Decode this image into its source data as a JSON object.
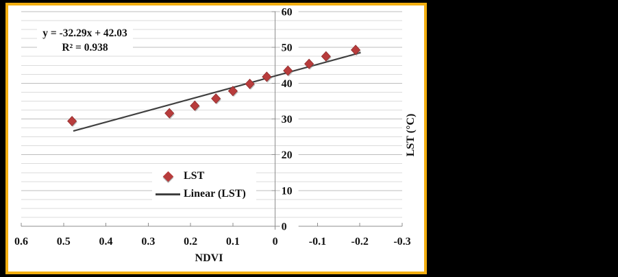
{
  "window": {
    "background": "#000000"
  },
  "chart": {
    "frame_color": "#F2AE10",
    "annotation": {
      "equation": "y = -32.29x + 42.03",
      "r_squared": "R² = 0.938"
    },
    "legend": {
      "items": [
        {
          "label": "LST",
          "marker": "diamond"
        },
        {
          "label": "Linear (LST)",
          "marker": "line"
        }
      ]
    }
  },
  "chart_data": {
    "type": "scatter",
    "title": "",
    "xlabel": "NDVI",
    "ylabel": "LST (°C)",
    "x_axis": {
      "min": 0.6,
      "max": -0.3,
      "reversed": true,
      "tick_values": [
        0.6,
        0.5,
        0.4,
        0.3,
        0.2,
        0.1,
        0,
        -0.1,
        -0.2,
        -0.3
      ],
      "tick_labels": [
        "0.6",
        "0.5",
        "0.4",
        "0.3",
        "0.2",
        "0.1",
        "0",
        "-0.1",
        "-0.2",
        "-0.3"
      ]
    },
    "y_axis": {
      "min": 0,
      "max": 60,
      "major_step": 10,
      "minor_step": 2.5,
      "tick_values": [
        0,
        10,
        20,
        30,
        40,
        50,
        60
      ],
      "tick_labels": [
        "0",
        "10",
        "20",
        "30",
        "40",
        "50",
        "60"
      ]
    },
    "grid": {
      "minor": true,
      "major": true
    },
    "legend_position": "inside-bottom-center",
    "series": [
      {
        "name": "LST",
        "marker": "diamond",
        "points": [
          {
            "x": 0.48,
            "y": 29.4
          },
          {
            "x": 0.25,
            "y": 31.6
          },
          {
            "x": 0.19,
            "y": 33.7
          },
          {
            "x": 0.14,
            "y": 35.7
          },
          {
            "x": 0.1,
            "y": 37.8
          },
          {
            "x": 0.06,
            "y": 39.8
          },
          {
            "x": 0.02,
            "y": 41.8
          },
          {
            "x": -0.03,
            "y": 43.5
          },
          {
            "x": -0.08,
            "y": 45.4
          },
          {
            "x": -0.12,
            "y": 47.5
          },
          {
            "x": -0.19,
            "y": 49.3
          }
        ]
      }
    ],
    "trendline": {
      "name": "Linear (LST)",
      "slope": -32.29,
      "intercept": 42.03,
      "r_squared": 0.938,
      "x_start": 0.477,
      "x_end": -0.202
    },
    "colors": {
      "marker": "#B83C3C",
      "marker_edge": "#8E2E2E",
      "trend": "#3F3F3F",
      "grid_minor": "#DBDBDB",
      "grid_major": "#BDBDBD",
      "axis": "#8C8C8C",
      "text": "#111111"
    }
  }
}
